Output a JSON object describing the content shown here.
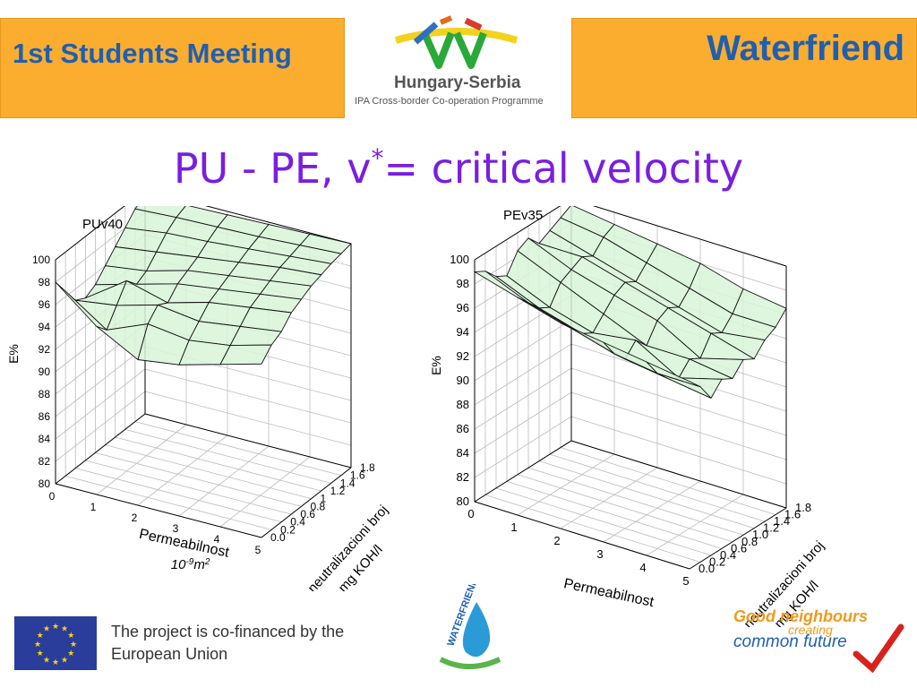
{
  "header": {
    "meeting_title": "1st Students Meeting",
    "project_title": "Waterfriend",
    "programme_title": "Hungary-Serbia",
    "programme_subtitle": "IPA Cross-border Co-operation Programme"
  },
  "slide": {
    "title_main": "PU  - PE, v",
    "title_sup": "*",
    "title_rest": "= critical velocity"
  },
  "footer": {
    "cofinanced_line1": "The project is co-financed by the",
    "cofinanced_line2": "European Union",
    "good_neighbours": "Good neighbours",
    "creating": "creating",
    "common_future": "common future",
    "waterfriend_logo": "WATERFRIEND"
  },
  "colors": {
    "header_bg": "#fbad2f",
    "header_text": "#1f5fb0",
    "title_text": "#7a1ee0",
    "surface_fill": "#d8f5d8",
    "surface_line": "#111111"
  },
  "chart_data": [
    {
      "type": "surface",
      "title": "PUv40",
      "zlabel": "E%",
      "xlabel_line1": "Permeabilnost",
      "xlabel_line2": "10",
      "xlabel_exp": "-9",
      "xlabel_unit": "m",
      "xlabel_unit_exp": "2",
      "ylabel_line1": "neutralizacioni broj",
      "ylabel_line2": "mg KOH/l",
      "xticks": [
        "0",
        "1",
        "2",
        "3",
        "4",
        "5"
      ],
      "yticks": [
        "0.0",
        "0.2",
        "0.4",
        "0.6",
        "0.8",
        "1",
        "1.2",
        "1.4",
        "1.6",
        "1.8"
      ],
      "zticks": [
        "80",
        "82",
        "84",
        "86",
        "88",
        "90",
        "92",
        "94",
        "96",
        "98",
        "100"
      ],
      "xlim": [
        0,
        5
      ],
      "ylim": [
        0,
        1.8
      ],
      "zlim": [
        80,
        100
      ],
      "grid": true,
      "z": [
        [
          98.0,
          96.5,
          95.0,
          94.5,
          95.0,
          96.0,
          97.0,
          98.0,
          99.0,
          99.5
        ],
        [
          95.0,
          94.0,
          95.5,
          97.0,
          96.0,
          96.5,
          97.5,
          98.5,
          99.2,
          99.6
        ],
        [
          93.0,
          95.5,
          96.5,
          96.0,
          97.0,
          97.5,
          98.0,
          98.7,
          99.3,
          99.7
        ],
        [
          93.5,
          95.0,
          96.0,
          97.0,
          97.5,
          98.0,
          98.5,
          99.0,
          99.4,
          99.8
        ],
        [
          94.5,
          95.5,
          96.5,
          97.5,
          98.0,
          98.5,
          99.0,
          99.3,
          99.6,
          99.9
        ],
        [
          95.5,
          96.5,
          97.0,
          98.0,
          98.5,
          99.0,
          99.3,
          99.6,
          99.8,
          100.0
        ]
      ]
    },
    {
      "type": "surface",
      "title": "PEv35",
      "zlabel": "E%",
      "xlabel_line1": "Permeabilnost",
      "ylabel_line1": "neutralizacioni broj",
      "ylabel_line2": "mg KOH/l",
      "xticks": [
        "0",
        "1",
        "2",
        "3",
        "4",
        "5"
      ],
      "yticks": [
        "0.0",
        "0.2",
        "0.4",
        "0.6",
        "0.8",
        "1.0",
        "1.2",
        "1.4",
        "1.6",
        "1.8"
      ],
      "zticks": [
        "80",
        "82",
        "84",
        "86",
        "88",
        "90",
        "92",
        "94",
        "96",
        "98",
        "100"
      ],
      "xlim": [
        0,
        5
      ],
      "ylim": [
        0,
        1.8
      ],
      "zlim": [
        80,
        100
      ],
      "grid": true,
      "z": [
        [
          99.0,
          98.5,
          97.5,
          97.0,
          98.5,
          99.0,
          98.0,
          98.5,
          99.0,
          99.5
        ],
        [
          98.0,
          97.0,
          96.0,
          95.5,
          97.0,
          97.5,
          98.0,
          97.5,
          98.5,
          99.0
        ],
        [
          97.0,
          96.0,
          95.0,
          94.5,
          95.5,
          96.5,
          97.0,
          96.5,
          97.5,
          98.5
        ],
        [
          96.5,
          95.0,
          94.0,
          95.0,
          94.0,
          95.5,
          96.0,
          95.5,
          96.5,
          98.0
        ],
        [
          96.0,
          94.5,
          93.5,
          93.0,
          94.0,
          93.5,
          95.0,
          94.5,
          95.5,
          97.0
        ],
        [
          95.5,
          94.5,
          93.0,
          94.0,
          93.5,
          94.5,
          94.0,
          95.0,
          95.5,
          96.5
        ]
      ]
    }
  ]
}
